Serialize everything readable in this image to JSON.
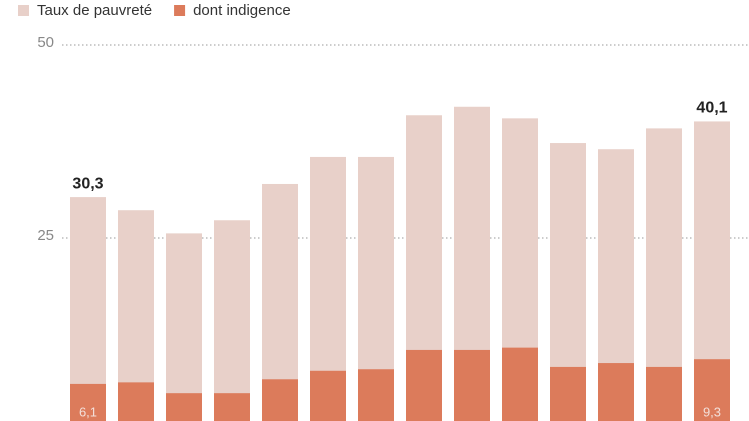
{
  "chart_data": {
    "type": "bar",
    "series": [
      {
        "name": "Taux de pauvreté",
        "color": "#e8d0c9",
        "values": [
          30.3,
          28.6,
          25.6,
          27.3,
          32.0,
          35.5,
          35.5,
          40.9,
          42.0,
          40.5,
          37.3,
          36.5,
          39.2,
          40.1
        ],
        "value_labels": [
          "30,3",
          null,
          null,
          null,
          null,
          null,
          null,
          null,
          null,
          null,
          null,
          null,
          null,
          "40,1"
        ]
      },
      {
        "name": "dont indigence",
        "color": "#dc7b5b",
        "values": [
          6.1,
          6.3,
          4.9,
          4.9,
          6.7,
          7.8,
          8.0,
          10.5,
          10.5,
          10.8,
          8.3,
          8.8,
          8.3,
          9.3
        ],
        "value_labels": [
          "6,1",
          null,
          null,
          null,
          null,
          null,
          null,
          null,
          null,
          null,
          null,
          null,
          null,
          "9,3"
        ]
      }
    ],
    "ylim": [
      0,
      50
    ],
    "yticks": [
      25,
      50
    ],
    "grid": true
  }
}
